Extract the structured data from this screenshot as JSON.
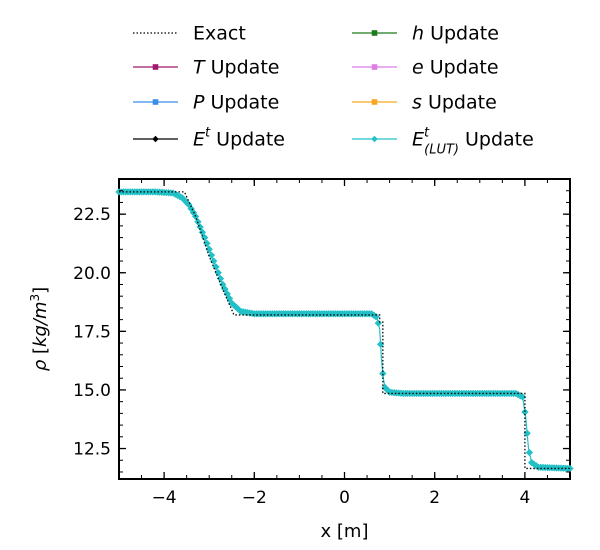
{
  "chart_data": {
    "type": "line",
    "xlabel": "x [m]",
    "ylabel": "ρ [kg/m3]",
    "xlim": [
      -5,
      5
    ],
    "ylim": [
      11.2,
      24.0
    ],
    "xticks": [
      -4,
      -2,
      0,
      2,
      4
    ],
    "yticks": [
      12.5,
      15.0,
      17.5,
      20.0,
      22.5
    ],
    "xtick_labels": [
      "−4",
      "−2",
      "0",
      "2",
      "4"
    ],
    "ytick_labels": [
      "12.5",
      "15.0",
      "17.5",
      "20.0",
      "22.5"
    ],
    "grid": false,
    "legend_position": "above plot, two columns",
    "series": [
      {
        "name": "Exact",
        "style": "dotted",
        "color": "#000000",
        "x": [
          -5.0,
          -3.55,
          -3.3,
          -3.0,
          -2.7,
          -2.45,
          0.78,
          0.78,
          0.85,
          0.85,
          4.0,
          4.0,
          5.0
        ],
        "y": [
          23.45,
          23.45,
          22.4,
          20.7,
          19.3,
          18.2,
          18.2,
          17.9,
          17.9,
          14.85,
          14.85,
          11.65,
          11.65
        ]
      },
      {
        "name": "T Update",
        "label_main": "T",
        "label_sup": "",
        "label_sub": "",
        "style": "markers",
        "marker": "square",
        "color": "#a0196e"
      },
      {
        "name": "P Update",
        "label_main": "P",
        "label_sup": "",
        "label_sub": "",
        "style": "markers",
        "marker": "square",
        "color": "#3a8ee6"
      },
      {
        "name": "Et Update",
        "label_main": "E",
        "label_sup": "t",
        "label_sub": "",
        "style": "markers",
        "marker": "diamond",
        "color": "#000000"
      },
      {
        "name": "h Update",
        "label_main": "h",
        "label_sup": "",
        "label_sub": "",
        "style": "markers",
        "marker": "square",
        "color": "#1c7a1c"
      },
      {
        "name": "e Update",
        "label_main": "e",
        "label_sup": "",
        "label_sub": "",
        "style": "markers",
        "marker": "square",
        "color": "#dd7ee8"
      },
      {
        "name": "s Update",
        "label_main": "s",
        "label_sup": "",
        "label_sub": "",
        "style": "markers",
        "marker": "square",
        "color": "#f5a623"
      },
      {
        "name": "Et(LUT) Update",
        "label_main": "E",
        "label_sup": "t",
        "label_sub": "(LUT)",
        "style": "markers",
        "marker": "diamond",
        "color": "#21c1c7",
        "x": [
          -5.0,
          -4.2,
          -3.8,
          -3.6,
          -3.45,
          -3.3,
          -3.1,
          -2.9,
          -2.7,
          -2.5,
          -2.3,
          -2.0,
          -1.0,
          0.0,
          0.6,
          0.72,
          0.78,
          0.82,
          0.86,
          0.9,
          1.0,
          1.3,
          2.0,
          3.0,
          3.8,
          3.95,
          4.02,
          4.08,
          4.15,
          4.3,
          5.0
        ],
        "y": [
          23.45,
          23.45,
          23.4,
          23.2,
          22.9,
          22.4,
          21.5,
          20.5,
          19.5,
          18.7,
          18.35,
          18.25,
          18.25,
          18.25,
          18.25,
          18.1,
          17.6,
          16.3,
          15.5,
          15.1,
          14.9,
          14.85,
          14.85,
          14.85,
          14.85,
          14.7,
          13.8,
          12.5,
          11.9,
          11.7,
          11.65
        ]
      }
    ]
  },
  "legend": {
    "label_update": "Update",
    "label_exact": "Exact"
  }
}
